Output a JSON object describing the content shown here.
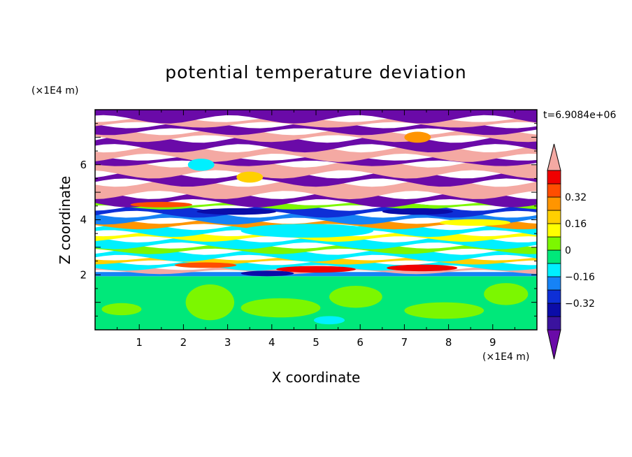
{
  "chart_data": {
    "type": "heatmap",
    "title": "potential temperature deviation",
    "xlabel": "X coordinate",
    "ylabel": "Z coordinate",
    "x_unit": "(×1E4 m)",
    "y_unit": "(×1E4 m)",
    "time_label": "t=6.9084e+06",
    "xlim": [
      0,
      10
    ],
    "ylim": [
      0,
      8
    ],
    "x_ticks": [
      1,
      2,
      3,
      4,
      5,
      6,
      7,
      8,
      9
    ],
    "y_ticks": [
      2,
      4,
      6
    ],
    "grid": false,
    "legend_placement": "right",
    "colorbar": {
      "levels": [
        -0.48,
        -0.4,
        -0.32,
        -0.24,
        -0.16,
        -0.08,
        0,
        0.08,
        0.16,
        0.24,
        0.32,
        0.4,
        0.48
      ],
      "tick_labels": [
        "0.32",
        "0.16",
        "0",
        "−0.16",
        "−0.32"
      ],
      "tick_values": [
        0.32,
        0.16,
        0,
        -0.16,
        -0.32
      ],
      "colors": [
        "#6a0aa8",
        "#3a139e",
        "#0b0ca8",
        "#0e2fd6",
        "#1683f6",
        "#00f0ff",
        "#00e87a",
        "#7cf700",
        "#ffff00",
        "#ffd000",
        "#ff9500",
        "#ff4d00",
        "#f00000",
        "#f4a9a3"
      ]
    },
    "bands": [
      {
        "z0": 0.0,
        "z1": 1.95,
        "value": 0.03,
        "color": "#00e87a"
      },
      {
        "z0": 1.95,
        "z1": 2.1,
        "value": -0.1,
        "color": "#1683f6"
      },
      {
        "z0": 2.1,
        "z1": 2.25,
        "value": 0.45,
        "color": "#f4a9a3"
      },
      {
        "z0": 2.25,
        "z1": 2.45,
        "value": -0.05,
        "color": "#00f0ff"
      },
      {
        "z0": 2.45,
        "z1": 2.6,
        "value": 0.2,
        "color": "#ffd000"
      },
      {
        "z0": 2.6,
        "z1": 2.85,
        "value": -0.06,
        "color": "#00f0ff"
      },
      {
        "z0": 2.85,
        "z1": 3.05,
        "value": 0.12,
        "color": "#7cf700"
      },
      {
        "z0": 3.05,
        "z1": 3.3,
        "value": -0.05,
        "color": "#00f0ff"
      },
      {
        "z0": 3.3,
        "z1": 3.5,
        "value": 0.2,
        "color": "#ffff00"
      },
      {
        "z0": 3.5,
        "z1": 3.75,
        "value": -0.07,
        "color": "#00f0ff"
      },
      {
        "z0": 3.75,
        "z1": 3.95,
        "value": 0.28,
        "color": "#ff9500"
      },
      {
        "z0": 3.95,
        "z1": 4.2,
        "value": -0.16,
        "color": "#1683f6"
      },
      {
        "z0": 4.2,
        "z1": 4.45,
        "value": -0.3,
        "color": "#0e2fd6"
      },
      {
        "z0": 4.45,
        "z1": 4.6,
        "value": 0.05,
        "color": "#7cf700"
      },
      {
        "z0": 4.6,
        "z1": 4.9,
        "value": -0.45,
        "color": "#6a0aa8"
      },
      {
        "z0": 4.9,
        "z1": 5.35,
        "value": 0.45,
        "color": "#f4a9a3"
      },
      {
        "z0": 5.35,
        "z1": 5.65,
        "value": -0.45,
        "color": "#6a0aa8"
      },
      {
        "z0": 5.65,
        "z1": 6.05,
        "value": 0.45,
        "color": "#f4a9a3"
      },
      {
        "z0": 6.05,
        "z1": 6.25,
        "value": -0.45,
        "color": "#6a0aa8"
      },
      {
        "z0": 6.25,
        "z1": 6.6,
        "value": 0.45,
        "color": "#f4a9a3"
      },
      {
        "z0": 6.6,
        "z1": 6.95,
        "value": -0.45,
        "color": "#6a0aa8"
      },
      {
        "z0": 6.95,
        "z1": 7.2,
        "value": 0.45,
        "color": "#f4a9a3"
      },
      {
        "z0": 7.2,
        "z1": 7.45,
        "value": -0.45,
        "color": "#6a0aa8"
      },
      {
        "z0": 7.45,
        "z1": 7.65,
        "value": 0.45,
        "color": "#f4a9a3"
      },
      {
        "z0": 7.65,
        "z1": 8.0,
        "value": -0.45,
        "color": "#6a0aa8"
      }
    ],
    "patches": [
      {
        "x": 0.6,
        "z": 0.75,
        "dx": 0.45,
        "dz": 0.22,
        "color": "#7cf700"
      },
      {
        "x": 2.6,
        "z": 1.0,
        "dx": 0.55,
        "dz": 0.65,
        "color": "#7cf700"
      },
      {
        "x": 4.2,
        "z": 0.8,
        "dx": 0.9,
        "dz": 0.35,
        "color": "#7cf700"
      },
      {
        "x": 5.9,
        "z": 1.2,
        "dx": 0.6,
        "dz": 0.4,
        "color": "#7cf700"
      },
      {
        "x": 7.9,
        "z": 0.7,
        "dx": 0.9,
        "dz": 0.3,
        "color": "#7cf700"
      },
      {
        "x": 9.3,
        "z": 1.3,
        "dx": 0.5,
        "dz": 0.4,
        "color": "#7cf700"
      },
      {
        "x": 5.3,
        "z": 0.35,
        "dx": 0.35,
        "dz": 0.15,
        "color": "#00f0ff"
      },
      {
        "x": 5.0,
        "z": 2.2,
        "dx": 0.9,
        "dz": 0.12,
        "color": "#f00000"
      },
      {
        "x": 2.5,
        "z": 2.35,
        "dx": 0.7,
        "dz": 0.1,
        "color": "#ff4d00"
      },
      {
        "x": 3.9,
        "z": 2.05,
        "dx": 0.6,
        "dz": 0.1,
        "color": "#0b0ca8"
      },
      {
        "x": 7.4,
        "z": 2.25,
        "dx": 0.8,
        "dz": 0.12,
        "color": "#f00000"
      },
      {
        "x": 4.8,
        "z": 3.6,
        "dx": 1.5,
        "dz": 0.25,
        "color": "#00f0ff"
      },
      {
        "x": 3.2,
        "z": 4.3,
        "dx": 0.9,
        "dz": 0.12,
        "color": "#0b0ca8"
      },
      {
        "x": 7.3,
        "z": 4.3,
        "dx": 0.8,
        "dz": 0.12,
        "color": "#0b0ca8"
      },
      {
        "x": 2.4,
        "z": 6.0,
        "dx": 0.3,
        "dz": 0.22,
        "color": "#00f0ff"
      },
      {
        "x": 3.5,
        "z": 5.55,
        "dx": 0.3,
        "dz": 0.2,
        "color": "#ffd000"
      },
      {
        "x": 7.3,
        "z": 7.0,
        "dx": 0.3,
        "dz": 0.2,
        "color": "#ff9500"
      },
      {
        "x": 1.5,
        "z": 4.55,
        "dx": 0.7,
        "dz": 0.1,
        "color": "#ff4d00"
      },
      {
        "x": 8.6,
        "z": 3.9,
        "dx": 0.8,
        "dz": 0.12,
        "color": "#ffff00"
      }
    ]
  }
}
